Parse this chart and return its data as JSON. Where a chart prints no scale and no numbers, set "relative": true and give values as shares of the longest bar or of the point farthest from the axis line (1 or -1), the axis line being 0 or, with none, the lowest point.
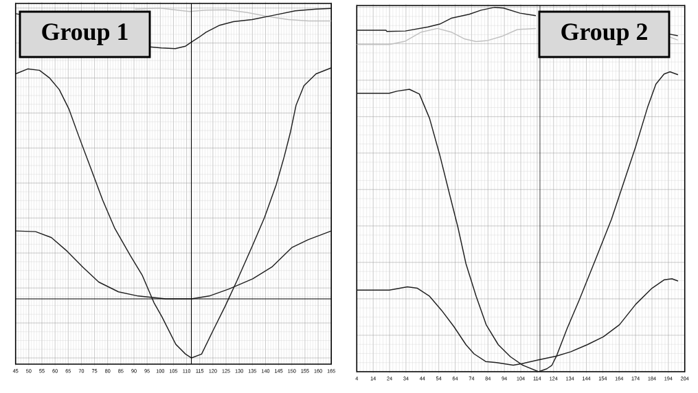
{
  "chart_data": [
    {
      "type": "line",
      "title": "Group 1",
      "relative": true,
      "xlim": [
        45,
        165
      ],
      "xticks": [
        45,
        50,
        55,
        60,
        65,
        70,
        75,
        80,
        85,
        90,
        95,
        100,
        105,
        110,
        115,
        120,
        125,
        130,
        135,
        140,
        145,
        150,
        155,
        160,
        165
      ],
      "grid": true,
      "marker": "none",
      "series": [
        {
          "color": "#c0c0c0",
          "x": [
            90.4,
            99.9,
            111.1,
            117.4,
            125.2,
            133.1,
            140.9,
            148.7,
            156.5,
            165
          ],
          "values": [
            0.997,
            1.0,
            0.99,
            0.994,
            0.995,
            0.987,
            0.976,
            0.967,
            0.963,
            0.963
          ]
        },
        {
          "color": "#202020",
          "x": [
            45,
            46.4,
            70,
            96.0,
            100.4,
            105.7,
            109.6,
            111.7,
            114.8,
            117.4,
            122.6,
            127.8,
            134.9,
            143.5,
            151.3,
            159.2,
            165
          ],
          "values": [
            0.984,
            0.982,
            null,
            0.889,
            0.886,
            0.884,
            0.891,
            0.902,
            0.917,
            0.931,
            0.951,
            0.961,
            0.967,
            0.98,
            0.992,
            0.997,
            0.999
          ]
        },
        {
          "color": "#202020",
          "x": [
            45,
            49.6,
            54.1,
            57.8,
            61.6,
            65.3,
            69.1,
            73.6,
            78.1,
            82.6,
            88.6,
            93.1,
            97.6,
            100.6,
            105.9,
            109.6,
            111.8,
            115.7,
            120.1,
            124.6,
            129.1,
            135.1,
            139.6,
            144.1,
            147.1,
            149.4,
            151.6,
            154.6,
            159.2,
            165
          ],
          "values": [
            0.812,
            0.826,
            0.822,
            0.801,
            0.767,
            0.711,
            0.632,
            0.542,
            0.451,
            0.372,
            0.293,
            0.237,
            0.158,
            0.118,
            0.039,
            0.011,
            0.0,
            0.011,
            0.079,
            0.147,
            0.22,
            0.322,
            0.401,
            0.496,
            0.575,
            0.643,
            0.722,
            0.778,
            0.812,
            0.829
          ]
        },
        {
          "color": "#202020",
          "x": [
            45,
            52.6,
            58.6,
            64.6,
            70.6,
            76.6,
            84.1,
            91.6,
            102.1,
            111.8,
            118.6,
            126.1,
            135.1,
            142.6,
            150.1,
            156.2,
            165
          ],
          "values": [
            0.363,
            0.361,
            0.344,
            0.305,
            0.259,
            0.217,
            0.189,
            0.177,
            0.169,
            0.169,
            0.177,
            0.197,
            0.226,
            0.261,
            0.316,
            0.338,
            0.363
          ]
        }
      ],
      "ref_lines": [
        {
          "axis": "x",
          "value": 111.8,
          "color": "#000000"
        },
        {
          "axis": "y",
          "value": 0.169,
          "color": "#000000"
        }
      ]
    },
    {
      "type": "line",
      "title": "Group 2",
      "relative": true,
      "xlim": [
        4,
        204
      ],
      "xticks": [
        4,
        14,
        24,
        34,
        44,
        54,
        64,
        74,
        84,
        94,
        104,
        114,
        124,
        134,
        144,
        154,
        164,
        174,
        184,
        194,
        204
      ],
      "grid": true,
      "marker": "none",
      "series": [
        {
          "color": "#c0c0c0",
          "x": [
            4,
            23.9,
            33.6,
            43.3,
            53.2,
            61.6,
            69.9,
            76.8,
            83.9,
            92.3,
            101.9,
            113.2,
            150,
            194.1,
            199.8
          ],
          "values": [
            0.898,
            0.898,
            0.907,
            0.932,
            0.942,
            0.932,
            0.913,
            0.906,
            0.909,
            0.92,
            0.939,
            0.942,
            null,
            0.92,
            0.91
          ]
        },
        {
          "color": "#202020",
          "x": [
            4,
            21.8,
            22.3,
            33.6,
            47.4,
            54.6,
            61.6,
            72.6,
            79.7,
            88.1,
            93.5,
            103.5,
            113.2,
            150,
            194.1,
            199.8
          ],
          "values": [
            0.937,
            0.937,
            0.934,
            0.935,
            0.946,
            0.954,
            0.97,
            0.981,
            0.992,
            1.0,
            0.998,
            0.984,
            0.977,
            null,
            0.927,
            0.922
          ]
        },
        {
          "color": "#202020",
          "x": [
            4,
            23.8,
            28.6,
            36.1,
            42.2,
            48.4,
            54.6,
            60.7,
            65.7,
            70.6,
            76.8,
            82.9,
            90.3,
            97.7,
            105.1,
            114.9,
            119.9,
            122.9,
            125.8,
            132.2,
            139.6,
            149.5,
            159.3,
            166.7,
            174.1,
            181.5,
            186.4,
            191.4,
            195.0,
            199.9
          ],
          "values": [
            0.764,
            0.764,
            0.77,
            0.775,
            0.762,
            0.695,
            0.595,
            0.485,
            0.396,
            0.296,
            0.207,
            0.129,
            0.074,
            0.041,
            0.018,
            0.0,
            0.008,
            0.017,
            0.043,
            0.118,
            0.196,
            0.307,
            0.418,
            0.518,
            0.618,
            0.728,
            0.789,
            0.817,
            0.823,
            0.815
          ]
        },
        {
          "color": "#202020",
          "x": [
            4,
            23.8,
            34.9,
            41.0,
            48.4,
            55.8,
            63.2,
            70.6,
            75.5,
            82.6,
            89.3,
            99.4,
            104.8,
            114.4,
            125.8,
            134.6,
            144.5,
            154.4,
            164.2,
            174.1,
            184.0,
            191.4,
            196.2,
            199.9
          ],
          "values": [
            0.224,
            0.224,
            0.233,
            0.229,
            0.207,
            0.168,
            0.124,
            0.074,
            0.049,
            0.028,
            0.025,
            0.018,
            0.022,
            0.032,
            0.043,
            0.055,
            0.074,
            0.096,
            0.129,
            0.185,
            0.229,
            0.252,
            0.255,
            0.249
          ]
        }
      ],
      "ref_lines": [
        {
          "axis": "x",
          "value": 115.7,
          "color": "#000000"
        }
      ]
    }
  ]
}
